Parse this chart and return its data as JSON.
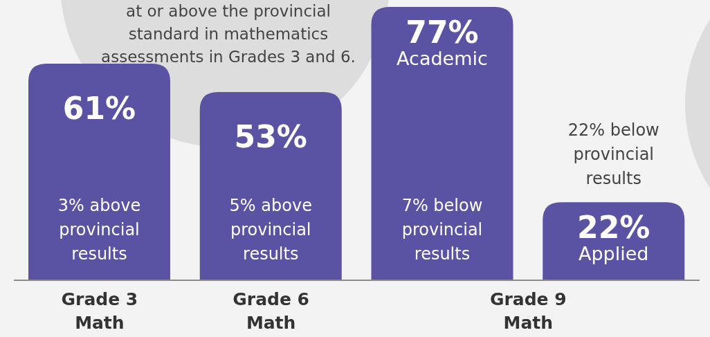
{
  "chart_data": {
    "type": "bar",
    "categories": [
      "Grade 3 Math",
      "Grade 6 Math",
      "Grade 9 Math",
      null
    ],
    "values": [
      61,
      53,
      77,
      22
    ],
    "color": "#5a52a3",
    "value_labels": [
      "61%",
      "53%",
      "77% Academic",
      "22% Applied"
    ],
    "annotations": [
      "at or above the provincial standard in mathematics assessments in Grades 3 and 6.",
      "3% above provincial results",
      "5% above provincial results",
      "7% below provincial results",
      "22% below provincial results"
    ],
    "grid": false,
    "legend": false
  }
}
